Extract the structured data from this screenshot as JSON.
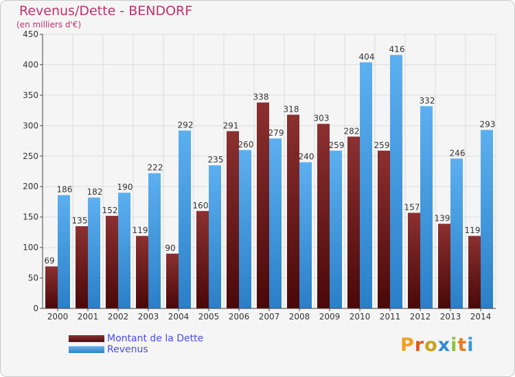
{
  "header": {
    "title": "Revenus/Dette - BENDORF",
    "subtitle": "(en milliers d'€)"
  },
  "legend": {
    "dette_label": "Montant de la Dette",
    "revenus_label": "Revenus"
  },
  "logo": {
    "text": "Proxiti"
  },
  "colors": {
    "dette": "#6b1a1a",
    "revenus": "#4aa3e6",
    "title": "#c0306a",
    "legend_text": "#4a4aee"
  },
  "chart_data": {
    "type": "bar",
    "title": "Revenus/Dette - BENDORF",
    "subtitle": "(en milliers d'€)",
    "xlabel": "",
    "ylabel": "",
    "ylim": [
      0,
      450
    ],
    "yticks": [
      0,
      50,
      100,
      150,
      200,
      250,
      300,
      350,
      400,
      450
    ],
    "grid": true,
    "legend_position": "bottom-left",
    "categories": [
      "2000",
      "2001",
      "2002",
      "2003",
      "2004",
      "2005",
      "2006",
      "2007",
      "2008",
      "2009",
      "2010",
      "2011",
      "2012",
      "2013",
      "2014"
    ],
    "series": [
      {
        "name": "Montant de la Dette",
        "values": [
          69,
          135,
          152,
          119,
          90,
          160,
          291,
          338,
          318,
          303,
          282,
          259,
          157,
          139,
          119
        ]
      },
      {
        "name": "Revenus",
        "values": [
          186,
          182,
          190,
          222,
          292,
          235,
          260,
          279,
          240,
          259,
          404,
          416,
          332,
          246,
          293
        ]
      }
    ]
  }
}
